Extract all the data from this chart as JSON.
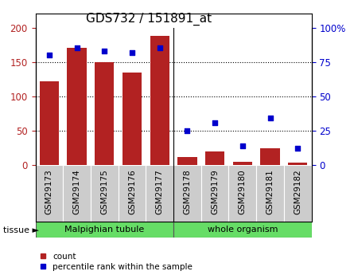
{
  "title": "GDS732 / 151891_at",
  "samples": [
    "GSM29173",
    "GSM29174",
    "GSM29175",
    "GSM29176",
    "GSM29177",
    "GSM29178",
    "GSM29179",
    "GSM29180",
    "GSM29181",
    "GSM29182"
  ],
  "counts": [
    122,
    170,
    149,
    135,
    188,
    12,
    20,
    5,
    24,
    4
  ],
  "percentile_ranks": [
    80,
    85,
    83,
    82,
    85,
    25,
    31,
    14,
    34,
    12
  ],
  "group1_n": 5,
  "group2_n": 5,
  "group1_label": "Malpighian tubule",
  "group2_label": "whole organism",
  "group_color": "#66dd66",
  "bar_color": "#b22222",
  "dot_color": "#0000cc",
  "left_ylim": [
    0,
    200
  ],
  "right_ylim": [
    0,
    100
  ],
  "left_yticks": [
    0,
    50,
    100,
    150,
    200
  ],
  "right_yticks": [
    0,
    25,
    50,
    75,
    100
  ],
  "right_yticklabels": [
    "0",
    "25",
    "50",
    "75",
    "100%"
  ],
  "tissue_label": "tissue",
  "legend_count_label": "count",
  "legend_percentile_label": "percentile rank within the sample",
  "cell_bg": "#cccccc",
  "plot_bg": "#ffffff",
  "title_fontsize": 11,
  "label_fontsize": 7.5,
  "tick_fontsize": 8.5
}
